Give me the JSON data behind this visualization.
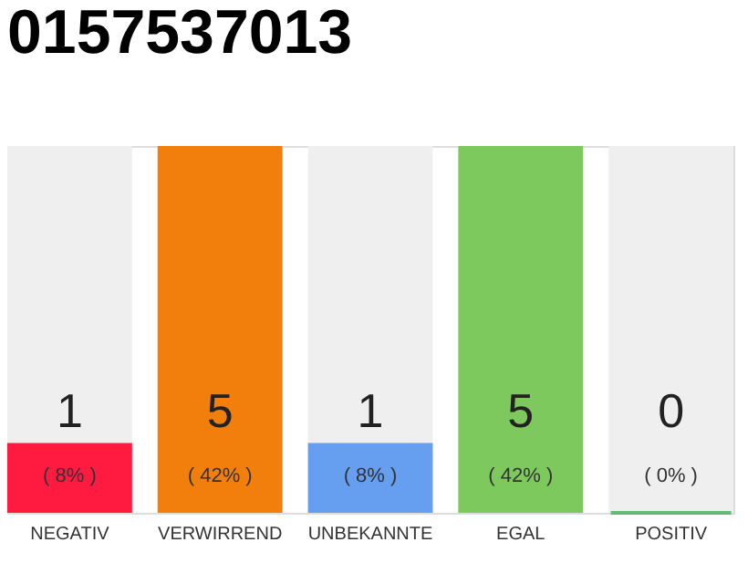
{
  "chart_data": {
    "type": "bar",
    "title": "0157537013",
    "categories": [
      "NEGATIV",
      "VERWIRREND",
      "UNBEKANNTE",
      "EGAL",
      "POSITIV"
    ],
    "values": [
      8,
      42,
      8,
      42,
      0
    ],
    "colors": [
      "#ff1a40",
      "#f27e0c",
      "#669ef0",
      "#7ec95e",
      "#2eaa4a"
    ],
    "value_labels": [
      "( 8% )",
      "( 42% )",
      "( 8% )",
      "( 42% )",
      "( 0% )"
    ],
    "annotations": [
      "1",
      "5",
      "1",
      "5",
      "0"
    ],
    "tick_labels": "x"
  }
}
